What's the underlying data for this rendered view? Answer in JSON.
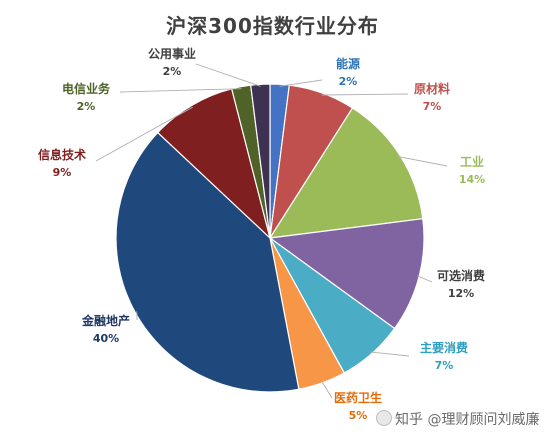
{
  "chart_data": {
    "type": "pie",
    "title": "沪深300指数行业分布",
    "slices": [
      {
        "label": "能源",
        "value": 2,
        "display": "2%",
        "color": "#4472c4",
        "label_color": "#2e75b6"
      },
      {
        "label": "原材料",
        "value": 7,
        "display": "7%",
        "color": "#c0504d",
        "label_color": "#c0504d"
      },
      {
        "label": "工业",
        "value": 14,
        "display": "14%",
        "color": "#9bbb59",
        "label_color": "#9bbb59"
      },
      {
        "label": "可选消费",
        "value": 12,
        "display": "12%",
        "color": "#8064a2",
        "label_color": "#404040"
      },
      {
        "label": "主要消费",
        "value": 7,
        "display": "7%",
        "color": "#4bacc6",
        "label_color": "#2e9fbf"
      },
      {
        "label": "医药卫生",
        "value": 5,
        "display": "5%",
        "color": "#f79646",
        "label_color": "#e46c0a"
      },
      {
        "label": "金融地产",
        "value": 40,
        "display": "40%",
        "color": "#1f497d",
        "label_color": "#1f3864"
      },
      {
        "label": "信息技术",
        "value": 9,
        "display": "9%",
        "color": "#7f1f1f",
        "label_color": "#7f1f1f"
      },
      {
        "label": "电信业务",
        "value": 2,
        "display": "2%",
        "color": "#4f6228",
        "label_color": "#4f6228"
      },
      {
        "label": "公用事业",
        "value": 2,
        "display": "2%",
        "color": "#3f3151",
        "label_color": "#404040"
      }
    ]
  },
  "watermark": {
    "text": "知乎 @理财顾问刘威廉"
  }
}
